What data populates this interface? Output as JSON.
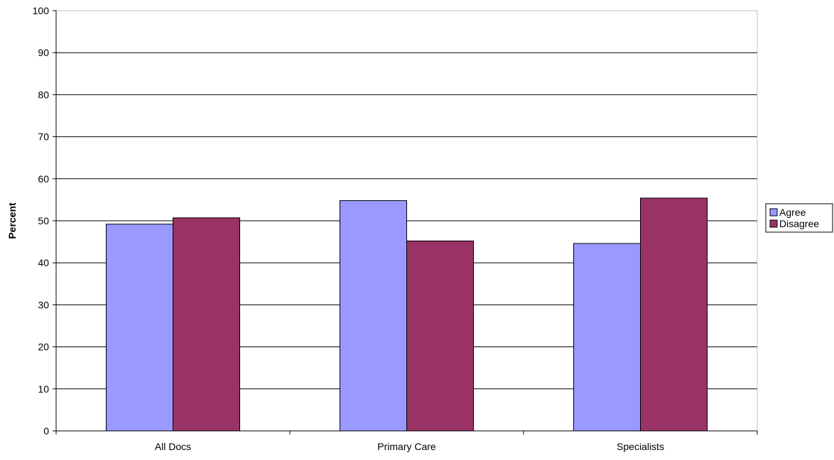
{
  "chart_data": {
    "type": "bar",
    "title": "",
    "xlabel": "",
    "ylabel": "Percent",
    "ylim": [
      0,
      100
    ],
    "yticks": [
      0,
      10,
      20,
      30,
      40,
      50,
      60,
      70,
      80,
      90,
      100
    ],
    "categories": [
      "All Docs",
      "Primary Care",
      "Specialists"
    ],
    "series": [
      {
        "name": "Agree",
        "color": "#9999ff",
        "values": [
          49.2,
          54.8,
          44.6
        ]
      },
      {
        "name": "Disagree",
        "color": "#993366",
        "values": [
          50.7,
          45.2,
          55.4
        ]
      }
    ],
    "grid": true,
    "legend_position": "right"
  }
}
